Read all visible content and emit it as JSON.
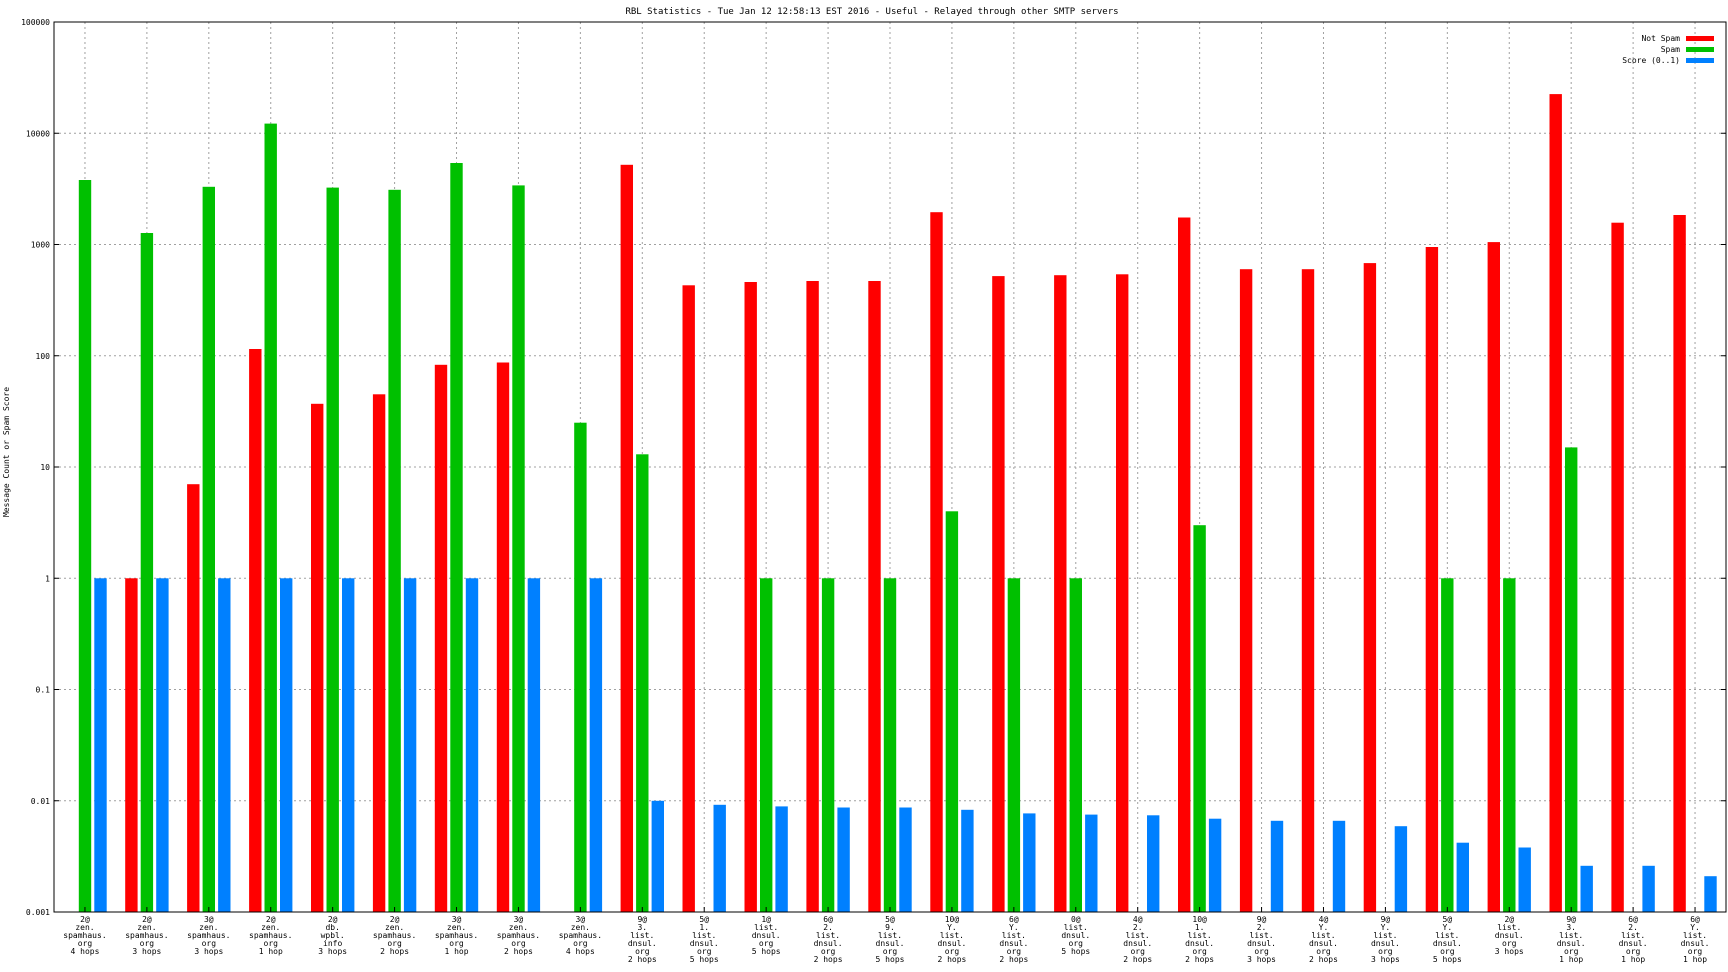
{
  "chart_data": {
    "type": "bar",
    "title": "RBL Statistics - Tue Jan 12 12:58:13 EST 2016 - Useful - Relayed through other SMTP servers",
    "ylabel": "Message Count or Spam Score",
    "xlabel": "",
    "yscale": "log",
    "ylim": [
      0.001,
      100000
    ],
    "yticks": [
      "0.001",
      "0.01",
      "0.1",
      "1",
      "10",
      "100",
      "1000",
      "10000",
      "100000"
    ],
    "grid": true,
    "legend_position": "top-right",
    "categories": [
      [
        "2@",
        "zen.",
        "spamhaus.",
        "org",
        "4 hops"
      ],
      [
        "2@",
        "zen.",
        "spamhaus.",
        "org",
        "3 hops"
      ],
      [
        "3@",
        "zen.",
        "spamhaus.",
        "org",
        "3 hops"
      ],
      [
        "2@",
        "zen.",
        "spamhaus.",
        "org",
        "1 hop"
      ],
      [
        "2@",
        "db.",
        "wpbl.",
        "info",
        "3 hops"
      ],
      [
        "2@",
        "zen.",
        "spamhaus.",
        "org",
        "2 hops"
      ],
      [
        "3@",
        "zen.",
        "spamhaus.",
        "org",
        "1 hop"
      ],
      [
        "3@",
        "zen.",
        "spamhaus.",
        "org",
        "2 hops"
      ],
      [
        "3@",
        "zen.",
        "spamhaus.",
        "org",
        "4 hops"
      ],
      [
        "9@",
        "3.",
        "list.",
        "dnsul.",
        "org",
        "2 hops"
      ],
      [
        "5@",
        "1.",
        "list.",
        "dnsul.",
        "org",
        "5 hops"
      ],
      [
        "1@",
        "list.",
        "dnsul.",
        "org",
        "5 hops"
      ],
      [
        "6@",
        "2.",
        "list.",
        "dnsul.",
        "org",
        "2 hops"
      ],
      [
        "5@",
        "9.",
        "list.",
        "dnsul.",
        "org",
        "5 hops"
      ],
      [
        "10@",
        "Y.",
        "list.",
        "dnsul.",
        "org",
        "2 hops"
      ],
      [
        "6@",
        "Y.",
        "list.",
        "dnsul.",
        "org",
        "2 hops"
      ],
      [
        "0@",
        "list.",
        "dnsul.",
        "org",
        "5 hops"
      ],
      [
        "4@",
        "2.",
        "list.",
        "dnsul.",
        "org",
        "2 hops"
      ],
      [
        "10@",
        "1.",
        "list.",
        "dnsul.",
        "org",
        "2 hops"
      ],
      [
        "9@",
        "2.",
        "list.",
        "dnsul.",
        "org",
        "3 hops"
      ],
      [
        "4@",
        "Y.",
        "list.",
        "dnsul.",
        "org",
        "2 hops"
      ],
      [
        "9@",
        "Y.",
        "list.",
        "dnsul.",
        "org",
        "3 hops"
      ],
      [
        "5@",
        "Y.",
        "list.",
        "dnsul.",
        "org",
        "5 hops"
      ],
      [
        "2@",
        "list.",
        "dnsul.",
        "org",
        "3 hops"
      ],
      [
        "9@",
        "3.",
        "list.",
        "dnsul.",
        "org",
        "1 hop"
      ],
      [
        "6@",
        "2.",
        "list.",
        "dnsul.",
        "org",
        "1 hop"
      ],
      [
        "6@",
        "Y.",
        "list.",
        "dnsul.",
        "org",
        "1 hop"
      ]
    ],
    "series": [
      {
        "name": "Not Spam",
        "color": "#ff0000",
        "values": [
          null,
          1,
          7,
          115,
          37,
          45,
          83,
          87,
          null,
          5200,
          430,
          460,
          470,
          470,
          1950,
          520,
          530,
          540,
          1750,
          600,
          600,
          680,
          950,
          1050,
          22500,
          1570,
          1840
        ]
      },
      {
        "name": "Spam",
        "color": "#00c000",
        "values": [
          3800,
          1270,
          3300,
          12200,
          3250,
          3100,
          5400,
          3400,
          25,
          13,
          null,
          1,
          1,
          1,
          4,
          1,
          1,
          null,
          3,
          null,
          null,
          null,
          1,
          1,
          15,
          null,
          null
        ]
      },
      {
        "name": "Score (0..1)",
        "color": "#0080ff",
        "values": [
          1,
          1,
          1,
          1,
          1,
          1,
          1,
          1,
          1,
          0.01,
          0.0092,
          0.0089,
          0.0087,
          0.0087,
          0.0083,
          0.0077,
          0.0075,
          0.0074,
          0.0069,
          0.0066,
          0.0066,
          0.0059,
          0.0042,
          0.0038,
          0.0026,
          0.0026,
          0.0021
        ]
      }
    ]
  }
}
